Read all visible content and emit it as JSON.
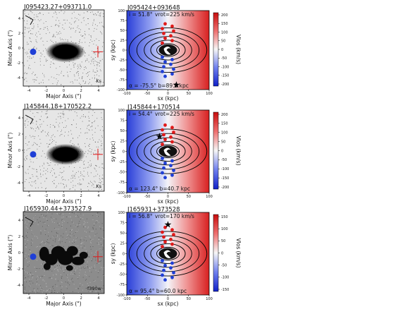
{
  "figure": {
    "panels": [
      {
        "left": {
          "title": "J095423.27+093711.0",
          "band": "Ks",
          "xlabel": "Major Axis (\")",
          "ylabel": "Minor Axis (\")",
          "xticks": [
            "-4",
            "-2",
            "0",
            "2",
            "4"
          ],
          "yticks": [
            "4",
            "2",
            "0",
            "-2",
            "-4"
          ],
          "background": "#e8e8e8"
        },
        "right": {
          "title": "J095424+093648",
          "incl": "i = 51.8°",
          "vrot": "vrot=225 km/s",
          "alpha_b": "α = -75.5° b=89.1 kpc",
          "xlabel": "sx (kpc)",
          "ylabel": "sy (kpc)",
          "xticks": [
            "-100",
            "-50",
            "0",
            "50",
            "100"
          ],
          "yticks": [
            "100",
            "75",
            "50",
            "25",
            "0",
            "-25",
            "-50",
            "-75",
            "-100"
          ],
          "cbar_label": "Vlos (km/s)",
          "cbar_ticks": [
            "200",
            "150",
            "100",
            "50",
            "0",
            "-50",
            "-100",
            "-150",
            "-200"
          ]
        }
      },
      {
        "left": {
          "title": "J145844.18+170522.2",
          "band": "Ks",
          "xlabel": "Major Axis (\")",
          "ylabel": "Minor Axis (\")",
          "xticks": [
            "-4",
            "-2",
            "0",
            "2",
            "4"
          ],
          "yticks": [
            "4",
            "2",
            "0",
            "-2",
            "-4"
          ],
          "background": "#e6e6e6"
        },
        "right": {
          "title": "J145844+170514",
          "incl": "i = 54.4°",
          "vrot": "vrot=225 km/s",
          "alpha_b": "α = 123.4° b=40.7 kpc",
          "xlabel": "sx (kpc)",
          "ylabel": "sy (kpc)",
          "xticks": [
            "-100",
            "-50",
            "0",
            "50",
            "100"
          ],
          "yticks": [
            "100",
            "75",
            "50",
            "25",
            "0",
            "-25",
            "-50",
            "-75",
            "-100"
          ],
          "cbar_label": "Vlos (km/s)",
          "cbar_ticks": [
            "200",
            "150",
            "100",
            "50",
            "0",
            "-50",
            "-100",
            "-150",
            "-200"
          ]
        }
      },
      {
        "left": {
          "title": "J165930.44+373527.9",
          "band": "f390w",
          "xlabel": "Major Axis (\")",
          "ylabel": "Minor Axis (\")",
          "xticks": [
            "-4",
            "-2",
            "0",
            "2",
            "4"
          ],
          "yticks": [
            "4",
            "2",
            "0",
            "-2",
            "-4"
          ],
          "background": "#8c8c8c"
        },
        "right": {
          "title": "J165931+373528",
          "incl": "i = 56.8°",
          "vrot": "vrot=170 km/s",
          "alpha_b": "α = 95.4° b=60.0 kpc",
          "xlabel": "sx (kpc)",
          "ylabel": "sy (kpc)",
          "xticks": [
            "-100",
            "-50",
            "0",
            "50",
            "100"
          ],
          "yticks": [
            "100",
            "75",
            "50",
            "25",
            "0",
            "-25",
            "-50",
            "-75",
            "-100"
          ],
          "cbar_label": "Vlos (km/s)",
          "cbar_ticks": [
            "150",
            "100",
            "50",
            "0",
            "-50",
            "-100",
            "-150"
          ]
        }
      }
    ],
    "colors": {
      "approaching": "#1f3fd6",
      "receding": "#e01a1a",
      "marker": "#000000"
    }
  }
}
